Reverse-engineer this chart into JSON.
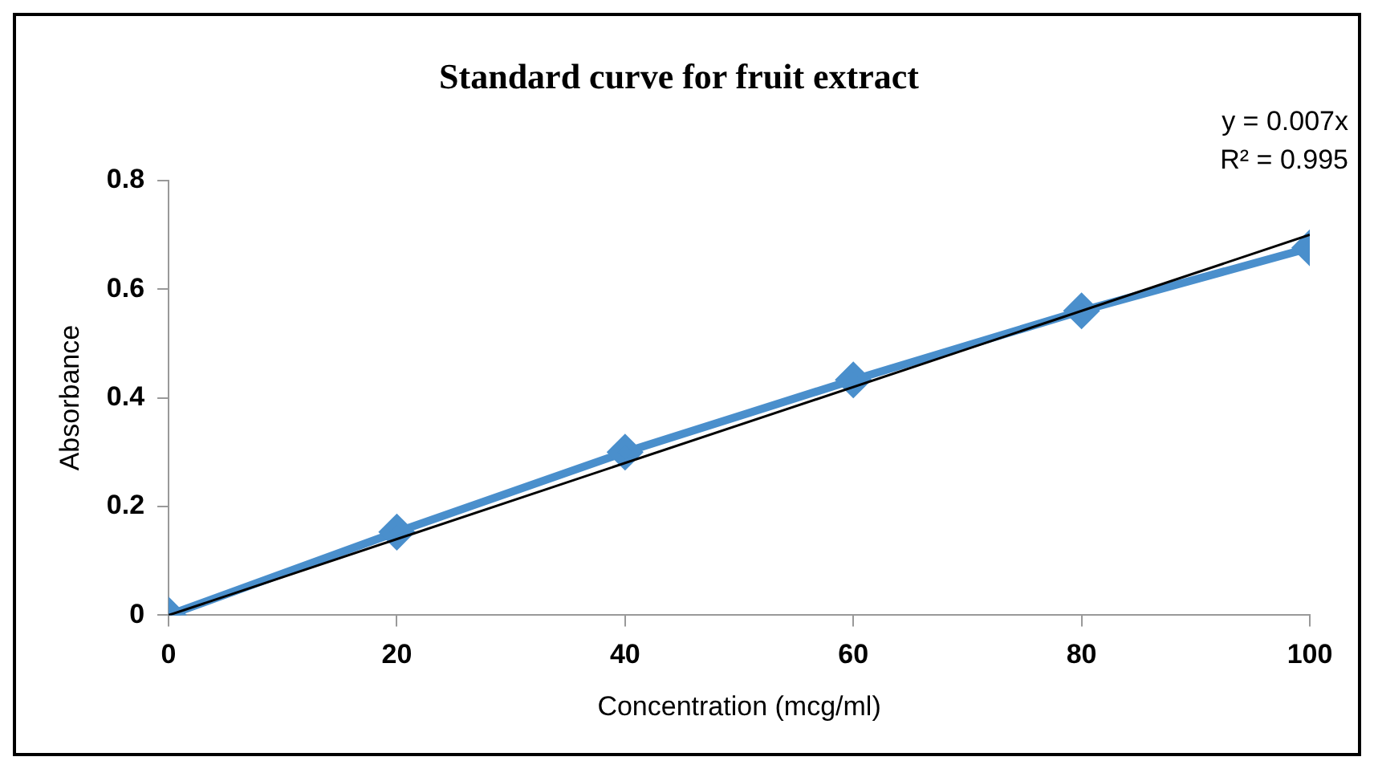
{
  "chart_data": {
    "type": "line",
    "title": "Standard curve for fruit extract",
    "xlabel": "Concentration (mcg/ml)",
    "ylabel": "Absorbance",
    "x": [
      0,
      20,
      40,
      60,
      80,
      100
    ],
    "series": [
      {
        "type": "line",
        "color": "#4a8fcc",
        "values": [
          0,
          0.153,
          0.3,
          0.433,
          0.56,
          0.676
        ],
        "marker": "diamond"
      },
      {
        "type": "line",
        "color": "#000000",
        "x": [
          0,
          100
        ],
        "values": [
          0,
          0.7
        ],
        "marker": "none"
      }
    ],
    "xlim": [
      0,
      100
    ],
    "xticks": [
      0,
      20,
      40,
      60,
      80,
      100
    ],
    "ylim": [
      0,
      0.8
    ],
    "yticks": [
      0,
      0.2,
      0.4,
      0.6,
      0.8
    ],
    "grid": false,
    "legend": false,
    "annotations": [
      "y = 0.007x",
      "R² = 0.995"
    ]
  }
}
